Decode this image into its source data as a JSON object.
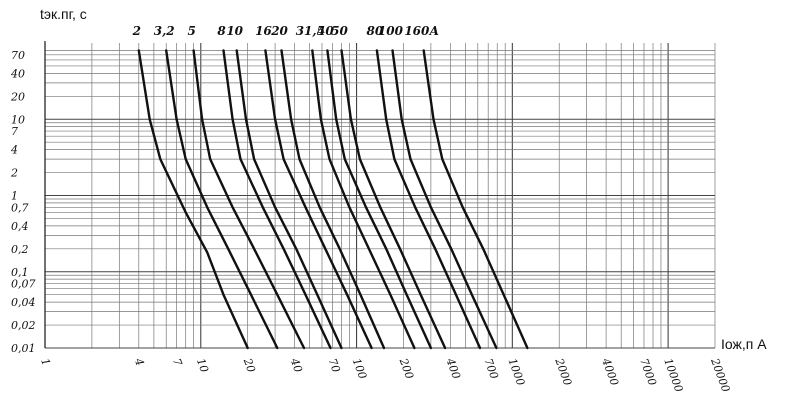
{
  "chart_data": {
    "type": "line",
    "title": "",
    "ylabel": "tэк.пг, c",
    "xlabel": "Iож,п A",
    "x_scale": "log",
    "y_scale": "log",
    "xlim": [
      1,
      20000
    ],
    "ylim": [
      0.01,
      100
    ],
    "grid": true,
    "y_ticks": [
      0.01,
      0.02,
      0.04,
      0.07,
      0.1,
      0.2,
      0.4,
      0.7,
      1,
      2,
      4,
      7,
      10,
      20,
      40,
      70
    ],
    "y_tick_labels": [
      "0,01",
      "0,02",
      "0,04",
      "0,07",
      "0,1",
      "0,2",
      "0,4",
      "0,7",
      "1",
      "2",
      "4",
      "7",
      "10",
      "20",
      "40",
      "70"
    ],
    "x_ticks": [
      1,
      4,
      7,
      10,
      20,
      40,
      70,
      100,
      200,
      400,
      700,
      1000,
      2000,
      4000,
      7000,
      10000,
      20000
    ],
    "x_tick_labels": [
      "1",
      "4",
      "7",
      "10",
      "20",
      "40",
      "70",
      "100",
      "200",
      "400",
      "700",
      "1000",
      "2000",
      "4000",
      "7000",
      "10000",
      "20000"
    ],
    "series": [
      {
        "name": "2",
        "points": [
          [
            4.0,
            80
          ],
          [
            4.7,
            10
          ],
          [
            5.5,
            3
          ],
          [
            8,
            0.6
          ],
          [
            11,
            0.18
          ],
          [
            14,
            0.05
          ],
          [
            20,
            0.01
          ]
        ]
      },
      {
        "name": "3,2",
        "points": [
          [
            6.0,
            80
          ],
          [
            7.0,
            10
          ],
          [
            8.0,
            3
          ],
          [
            11,
            0.7
          ],
          [
            15,
            0.2
          ],
          [
            21,
            0.05
          ],
          [
            31,
            0.01
          ]
        ]
      },
      {
        "name": "5",
        "points": [
          [
            9.0,
            80
          ],
          [
            10.2,
            10
          ],
          [
            11.5,
            3
          ],
          [
            16,
            0.7
          ],
          [
            22,
            0.2
          ],
          [
            31,
            0.05
          ],
          [
            46,
            0.01
          ]
        ]
      },
      {
        "name": "8",
        "points": [
          [
            14,
            80
          ],
          [
            16,
            10
          ],
          [
            18,
            3
          ],
          [
            25,
            0.7
          ],
          [
            34,
            0.2
          ],
          [
            47,
            0.05
          ],
          [
            68,
            0.01
          ]
        ]
      },
      {
        "name": "10",
        "points": [
          [
            17,
            80
          ],
          [
            19.5,
            10
          ],
          [
            22,
            3
          ],
          [
            30,
            0.7
          ],
          [
            41,
            0.2
          ],
          [
            56,
            0.05
          ],
          [
            80,
            0.01
          ]
        ]
      },
      {
        "name": "16",
        "points": [
          [
            26,
            80
          ],
          [
            30,
            10
          ],
          [
            34,
            3
          ],
          [
            47,
            0.7
          ],
          [
            63,
            0.2
          ],
          [
            87,
            0.05
          ],
          [
            125,
            0.01
          ]
        ]
      },
      {
        "name": "20",
        "points": [
          [
            33,
            80
          ],
          [
            38,
            10
          ],
          [
            43,
            3
          ],
          [
            58,
            0.7
          ],
          [
            78,
            0.2
          ],
          [
            106,
            0.05
          ],
          [
            150,
            0.01
          ]
        ]
      },
      {
        "name": "31,5",
        "points": [
          [
            52,
            80
          ],
          [
            59,
            10
          ],
          [
            67,
            3
          ],
          [
            90,
            0.7
          ],
          [
            120,
            0.2
          ],
          [
            165,
            0.05
          ],
          [
            235,
            0.01
          ]
        ]
      },
      {
        "name": "40",
        "points": [
          [
            65,
            80
          ],
          [
            74,
            10
          ],
          [
            84,
            3
          ],
          [
            115,
            0.7
          ],
          [
            155,
            0.2
          ],
          [
            210,
            0.05
          ],
          [
            300,
            0.01
          ]
        ]
      },
      {
        "name": "50",
        "points": [
          [
            80,
            80
          ],
          [
            92,
            10
          ],
          [
            105,
            3
          ],
          [
            142,
            0.7
          ],
          [
            190,
            0.2
          ],
          [
            258,
            0.05
          ],
          [
            370,
            0.01
          ]
        ]
      },
      {
        "name": "80",
        "points": [
          [
            135,
            80
          ],
          [
            155,
            10
          ],
          [
            175,
            3
          ],
          [
            238,
            0.7
          ],
          [
            320,
            0.2
          ],
          [
            435,
            0.05
          ],
          [
            620,
            0.01
          ]
        ]
      },
      {
        "name": "100",
        "points": [
          [
            170,
            80
          ],
          [
            195,
            10
          ],
          [
            222,
            3
          ],
          [
            300,
            0.7
          ],
          [
            405,
            0.2
          ],
          [
            550,
            0.05
          ],
          [
            790,
            0.01
          ]
        ]
      },
      {
        "name": "160А",
        "points": [
          [
            270,
            80
          ],
          [
            312,
            10
          ],
          [
            355,
            3
          ],
          [
            480,
            0.7
          ],
          [
            650,
            0.2
          ],
          [
            880,
            0.05
          ],
          [
            1250,
            0.01
          ]
        ]
      }
    ]
  }
}
